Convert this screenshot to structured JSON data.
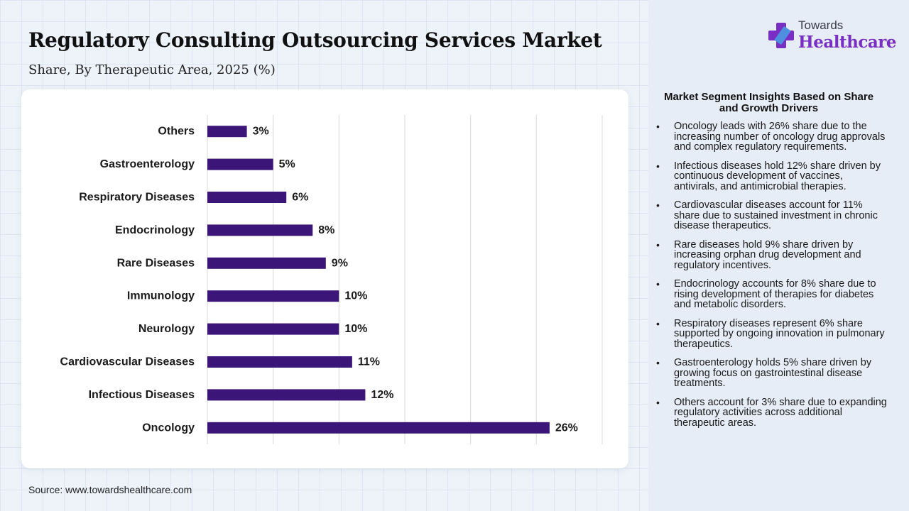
{
  "header": {
    "title": "Regulatory Consulting Outsourcing Services Market",
    "subtitle": "Share, By Therapeutic Area, 2025 (%)"
  },
  "source": "Source: www.towardshealthcare.com",
  "logo": {
    "line1": "Towards",
    "line2": "Healthcare",
    "icon": "medical-cross-icon",
    "brand_color": "#7a2fc4"
  },
  "colors": {
    "bar": "#3b1678",
    "gridline": "#d9d9d9"
  },
  "chart_data": {
    "type": "bar",
    "orientation": "horizontal",
    "categories": [
      "Others",
      "Gastroenterology",
      "Respiratory Diseases",
      "Endocrinology",
      "Rare Diseases",
      "Immunology",
      "Neurology",
      "Cardiovascular Diseases",
      "Infectious Diseases",
      "Oncology"
    ],
    "values": [
      3,
      5,
      6,
      8,
      9,
      10,
      10,
      11,
      12,
      26
    ],
    "value_labels": [
      "3%",
      "5%",
      "6%",
      "8%",
      "9%",
      "10%",
      "10%",
      "11%",
      "12%",
      "26%"
    ],
    "xlim": [
      0,
      30
    ],
    "grid": true,
    "legend": "none"
  },
  "insights": {
    "title": "Market Segment Insights Based on Share and Growth Drivers",
    "items": [
      "Oncology leads with 26% share due to the increasing number of oncology drug approvals and complex regulatory requirements.",
      "Infectious diseases hold 12% share driven by continuous development of vaccines, antivirals, and antimicrobial therapies.",
      "Cardiovascular diseases account for 11% share due to sustained investment in chronic disease therapeutics.",
      "Rare diseases hold 9% share driven by increasing orphan drug development and regulatory incentives.",
      "Endocrinology accounts for 8% share due to rising development of therapies for diabetes and metabolic disorders.",
      "Respiratory diseases represent 6% share supported by ongoing innovation in pulmonary therapeutics.",
      "Gastroenterology holds 5% share driven by growing focus on gastrointestinal disease treatments.",
      "Others account for 3% share due to expanding regulatory activities across additional therapeutic areas."
    ]
  }
}
